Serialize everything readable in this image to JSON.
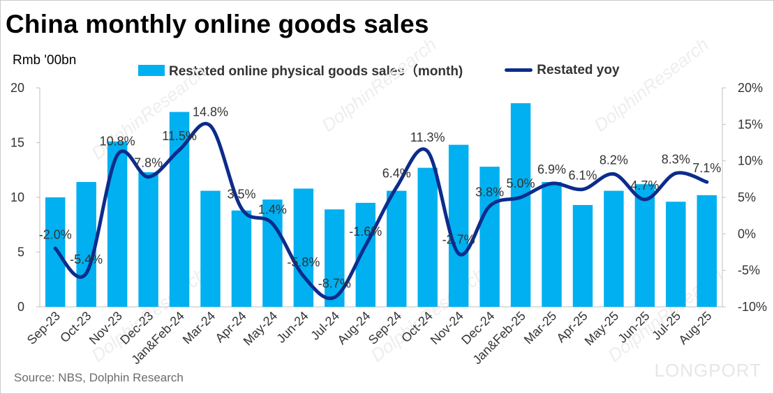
{
  "title": "China monthly online goods sales",
  "unit": "Rmb '00bn",
  "source": "Source: NBS, Dolphin Research",
  "watermark": "LONGPORT",
  "colors": {
    "bar": "#00b0f0",
    "line": "#0c2c8c"
  },
  "chart_data": {
    "type": "bar+line",
    "categories": [
      "Sep-23",
      "Oct-23",
      "Nov-23",
      "Dec-23",
      "Jan&Feb-24",
      "Mar-24",
      "Apr-24",
      "May-24",
      "Jun-24",
      "Jul-24",
      "Aug-24",
      "Sep-24",
      "Oct-24",
      "Nov-24",
      "Dec-24",
      "Jan&Feb-25",
      "Mar-25",
      "Apr-25",
      "May-25",
      "Jun-25",
      "Jul-25",
      "Aug-25"
    ],
    "series": [
      {
        "name": "Restated online physical goods sales（month)",
        "type": "bar",
        "axis": "left",
        "values": [
          10.0,
          11.4,
          15.1,
          12.3,
          17.8,
          10.6,
          8.8,
          9.8,
          10.8,
          8.9,
          9.5,
          10.6,
          12.7,
          14.8,
          12.8,
          18.6,
          11.4,
          9.3,
          10.6,
          11.2,
          9.6,
          10.2
        ]
      },
      {
        "name": "Restated yoy",
        "type": "line",
        "axis": "right",
        "values": [
          -2.0,
          -5.4,
          10.8,
          7.8,
          11.5,
          14.8,
          3.5,
          1.4,
          -5.8,
          -8.7,
          -1.6,
          6.4,
          11.3,
          -2.7,
          3.8,
          5.0,
          6.9,
          6.1,
          8.2,
          4.7,
          8.3,
          7.1
        ],
        "labels": [
          "-2.0%",
          "-5.4%",
          "10.8%",
          "7.8%",
          "11.5%",
          "14.8%",
          "3.5%",
          "1.4%",
          "-5.8%",
          "-8.7%",
          "-1.6%",
          "6.4%",
          "11.3%",
          "-2.7%",
          "3.8%",
          "5.0%",
          "6.9%",
          "6.1%",
          "8.2%",
          "4.7%",
          "8.3%",
          "7.1%"
        ]
      }
    ],
    "y_left": {
      "min": 0,
      "max": 20,
      "ticks": [
        "0",
        "5",
        "10",
        "15",
        "20"
      ]
    },
    "y_right": {
      "min": -10,
      "max": 20,
      "ticks": [
        "-10%",
        "-5%",
        "0%",
        "5%",
        "10%",
        "15%",
        "20%"
      ]
    },
    "legend": "top",
    "grid": false
  }
}
